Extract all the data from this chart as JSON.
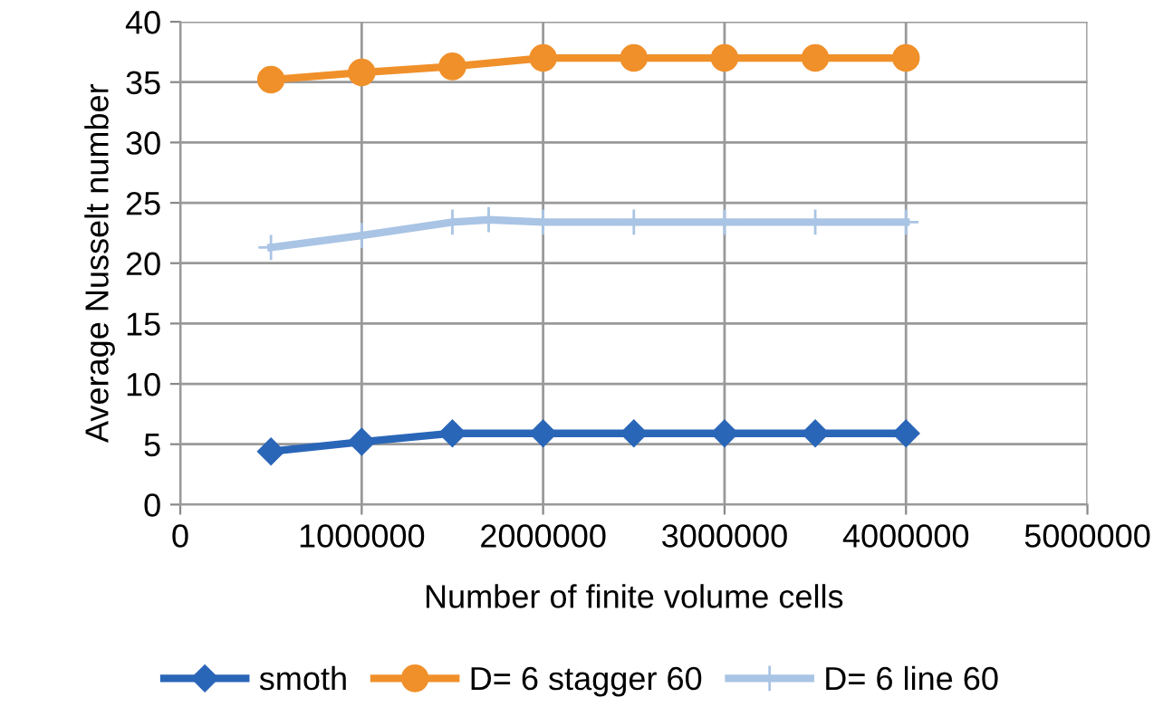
{
  "chart_data": {
    "type": "line",
    "xlabel": "Number of finite volume cells",
    "ylabel": "Average Nusselt number",
    "x": [
      500000,
      1000000,
      1500000,
      2000000,
      2500000,
      3000000,
      3500000,
      4000000
    ],
    "series": [
      {
        "name": "smoth",
        "color": "#2a66b8",
        "marker": "diamond",
        "values": [
          4.4,
          5.2,
          5.9,
          5.9,
          5.9,
          5.9,
          5.9,
          5.9
        ]
      },
      {
        "name": "D= 6 stagger 60",
        "color": "#f0902a",
        "marker": "circle",
        "values": [
          35.2,
          35.8,
          36.3,
          37.0,
          37.0,
          37.0,
          37.0,
          37.0
        ]
      },
      {
        "name": "D= 6 line 60",
        "color": "#a9c4e4",
        "marker": "cross",
        "x": [
          500000,
          1000000,
          1500000,
          1700000,
          2000000,
          2500000,
          3000000,
          3500000,
          4000000
        ],
        "values": [
          21.3,
          22.3,
          23.4,
          23.6,
          23.4,
          23.4,
          23.4,
          23.4,
          23.4
        ]
      }
    ],
    "xlim": [
      0,
      5000000
    ],
    "xticks": [
      0,
      1000000,
      2000000,
      3000000,
      4000000,
      5000000
    ],
    "ylim": [
      0,
      40
    ],
    "yticks": [
      0,
      5,
      10,
      15,
      20,
      25,
      30,
      35,
      40
    ],
    "grid": true,
    "legend": "bottom"
  }
}
